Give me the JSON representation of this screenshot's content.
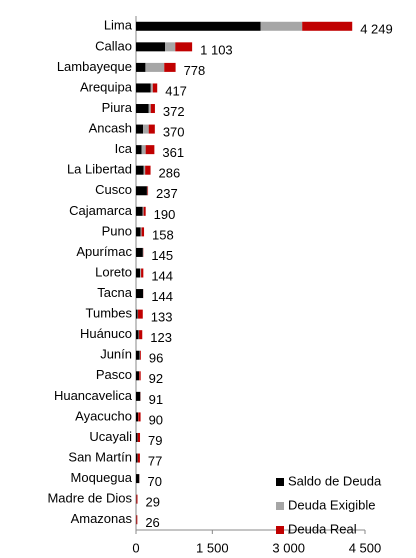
{
  "chart_data": {
    "type": "stacked_barh",
    "categories": [
      "Lima",
      "Callao",
      "Lambayeque",
      "Arequipa",
      "Piura",
      "Ancash",
      "Ica",
      "La Libertad",
      "Cusco",
      "Cajamarca",
      "Puno",
      "Apurímac",
      "Loreto",
      "Tacna",
      "Tumbes",
      "Huánuco",
      "Junín",
      "Pasco",
      "Huancavelica",
      "Ayacucho",
      "Ucayali",
      "San Martín",
      "Moquegua",
      "Madre de Dios",
      "Amazonas"
    ],
    "series": [
      {
        "name": "Saldo de Deuda",
        "color": "#000000",
        "values": [
          2450,
          570,
          185,
          290,
          250,
          140,
          110,
          150,
          215,
          130,
          90,
          135,
          80,
          140,
          30,
          50,
          70,
          60,
          85,
          40,
          30,
          30,
          65,
          5,
          4
        ]
      },
      {
        "name": "Deuda Exigible",
        "color": "#a6a6a6",
        "values": [
          816,
          202,
          370,
          40,
          40,
          110,
          80,
          30,
          10,
          20,
          20,
          5,
          20,
          2,
          10,
          10,
          10,
          5,
          3,
          5,
          5,
          5,
          3,
          4,
          4
        ]
      },
      {
        "name": "Deuda Real",
        "color": "#c00000",
        "values": [
          983,
          331,
          223,
          87,
          82,
          120,
          171,
          106,
          12,
          40,
          48,
          5,
          44,
          2,
          93,
          63,
          16,
          27,
          3,
          45,
          44,
          42,
          2,
          20,
          18
        ]
      }
    ],
    "totals": [
      4249,
      1103,
      778,
      417,
      372,
      370,
      361,
      286,
      237,
      190,
      158,
      145,
      144,
      144,
      133,
      123,
      96,
      92,
      91,
      90,
      79,
      77,
      70,
      29,
      26
    ],
    "total_labels": [
      "4 249",
      "1 103",
      "778",
      "417",
      "372",
      "370",
      "361",
      "286",
      "237",
      "190",
      "158",
      "145",
      "144",
      "144",
      "133",
      "123",
      "96",
      "92",
      "91",
      "90",
      "79",
      "77",
      "70",
      "29",
      "26"
    ],
    "xlim": [
      0,
      4500
    ],
    "xticks": [
      0,
      {
        "value": 1500,
        "label": "1 500"
      },
      {
        "value": 3000,
        "label": "3 000"
      },
      {
        "value": 4500,
        "label": "4 500"
      }
    ],
    "legend": "lower right"
  }
}
